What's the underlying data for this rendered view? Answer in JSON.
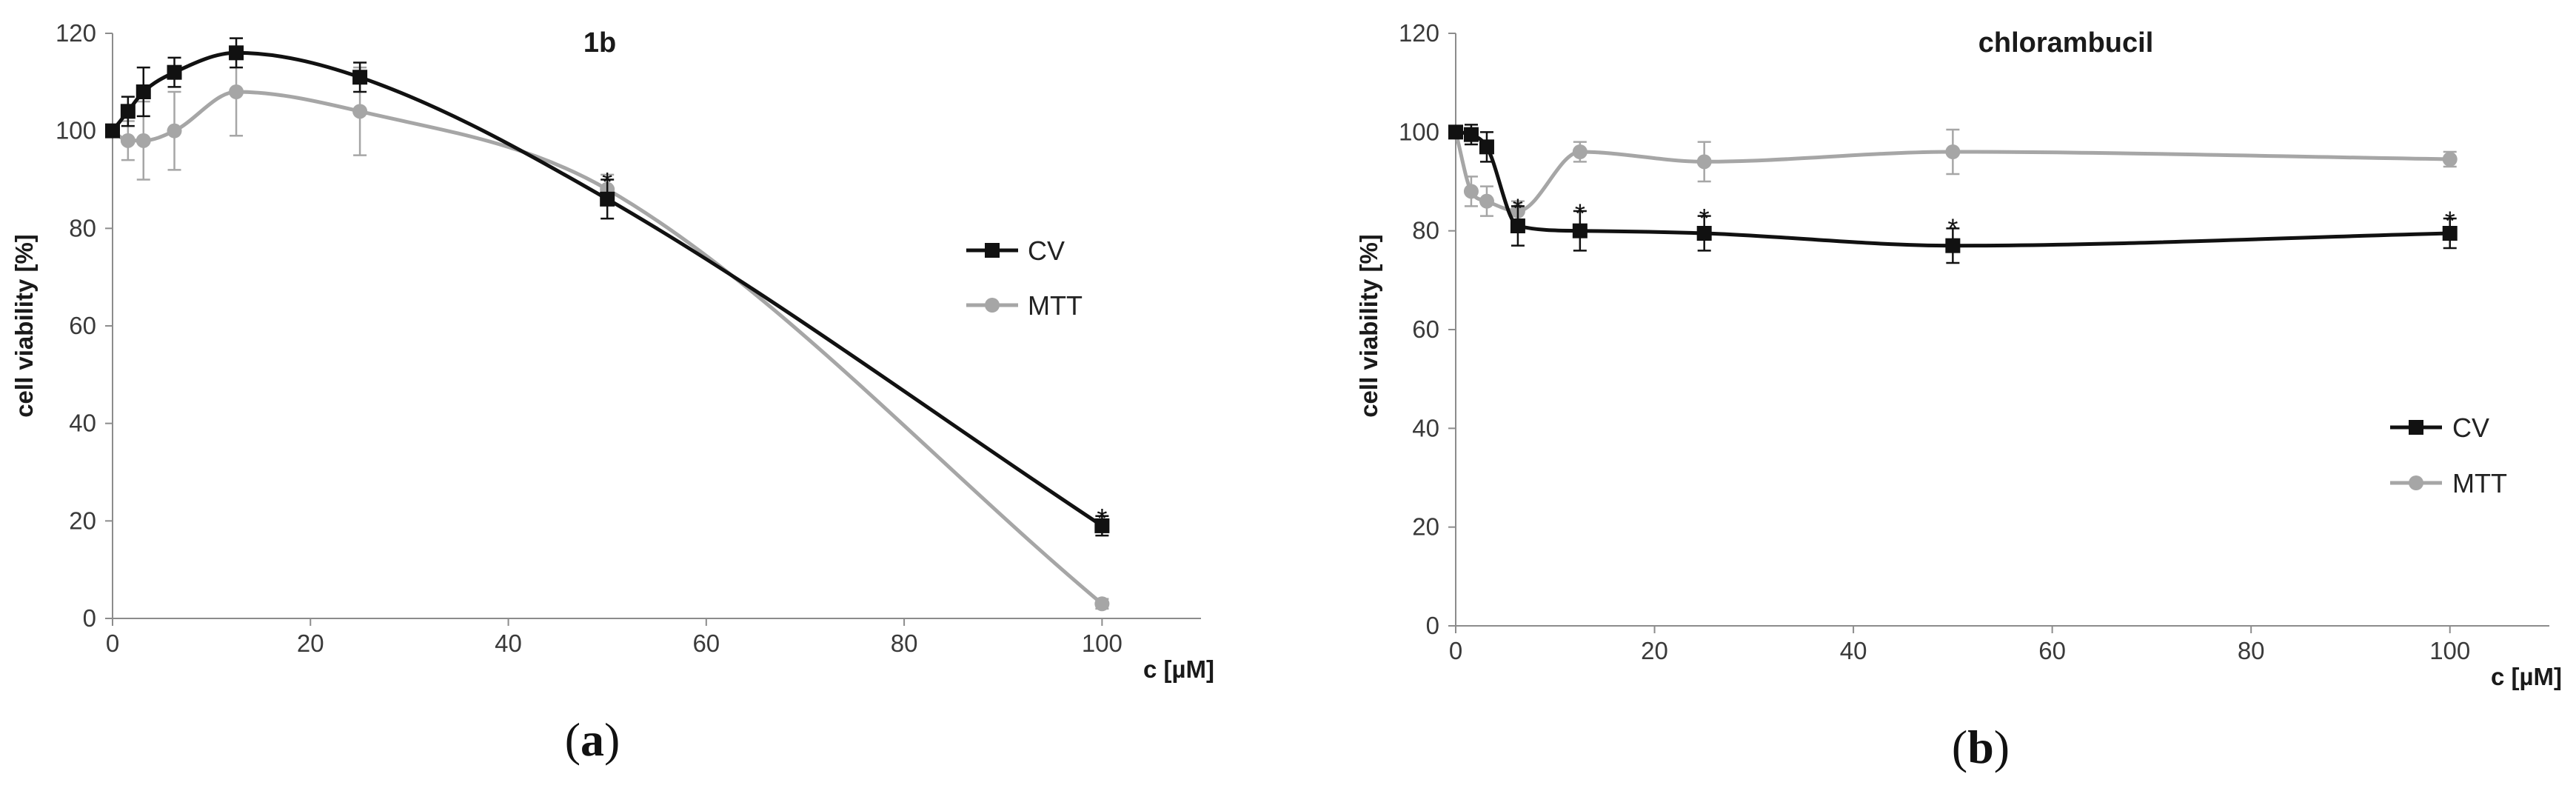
{
  "chart_data": [
    {
      "type": "line",
      "panel": "a",
      "title": "1b",
      "xlabel": "c [µM]",
      "ylabel": "cell viability [%]",
      "xlim": [
        0,
        110
      ],
      "ylim": [
        0,
        120
      ],
      "xticks": [
        0,
        20,
        40,
        60,
        80,
        100
      ],
      "yticks": [
        0,
        20,
        40,
        60,
        80,
        100,
        120
      ],
      "legend_position": "right-middle",
      "series": [
        {
          "name": "CV",
          "color": "#111111",
          "marker": "square",
          "x": [
            0,
            1.56,
            3.125,
            6.25,
            12.5,
            25,
            50,
            100
          ],
          "y": [
            100,
            104,
            108,
            112,
            116,
            111,
            86,
            19
          ],
          "err": [
            0,
            3,
            5,
            3,
            3,
            3,
            4,
            2
          ]
        },
        {
          "name": "MTT",
          "color": "#a6a6a6",
          "marker": "circle",
          "x": [
            0,
            1.56,
            3.125,
            6.25,
            12.5,
            25,
            50,
            100
          ],
          "y": [
            100,
            98,
            98,
            100,
            108,
            104,
            88,
            3
          ],
          "err": [
            0,
            4,
            8,
            8,
            9,
            9,
            3,
            1
          ]
        }
      ],
      "annotations": [
        {
          "text": "*",
          "x": 50,
          "y": 91
        },
        {
          "text": "*",
          "x": 100,
          "y": 22
        }
      ]
    },
    {
      "type": "line",
      "panel": "b",
      "title": "chlorambucil",
      "xlabel": "c [µM]",
      "ylabel": "cell viability [%]",
      "xlim": [
        0,
        110
      ],
      "ylim": [
        0,
        120
      ],
      "xticks": [
        0,
        20,
        40,
        60,
        80,
        100
      ],
      "yticks": [
        0,
        20,
        40,
        60,
        80,
        100,
        120
      ],
      "legend_position": "right-lower",
      "series": [
        {
          "name": "CV",
          "color": "#111111",
          "marker": "square",
          "x": [
            0,
            1.56,
            3.125,
            6.25,
            12.5,
            25,
            50,
            100
          ],
          "y": [
            100,
            99.5,
            97,
            81,
            80,
            79.5,
            77,
            79.5
          ],
          "err": [
            0,
            2,
            3,
            4,
            4,
            3.5,
            3.5,
            3
          ]
        },
        {
          "name": "MTT",
          "color": "#a6a6a6",
          "marker": "circle",
          "x": [
            0,
            1.56,
            3.125,
            6.25,
            12.5,
            25,
            50,
            100
          ],
          "y": [
            100,
            88,
            86,
            84,
            96,
            94,
            96,
            94.5
          ],
          "err": [
            0,
            3,
            3,
            2,
            2,
            4,
            4.5,
            1.5
          ]
        }
      ],
      "annotations": [
        {
          "text": "*",
          "x": 6.25,
          "y": 86
        },
        {
          "text": "*",
          "x": 12.5,
          "y": 85
        },
        {
          "text": "*",
          "x": 25,
          "y": 84
        },
        {
          "text": "*",
          "x": 50,
          "y": 82
        },
        {
          "text": "*",
          "x": 100,
          "y": 83.5
        }
      ]
    }
  ],
  "panel_labels": {
    "a": {
      "open": "(",
      "letter": "a",
      "close": ")"
    },
    "b": {
      "open": "(",
      "letter": "b",
      "close": ")"
    }
  }
}
